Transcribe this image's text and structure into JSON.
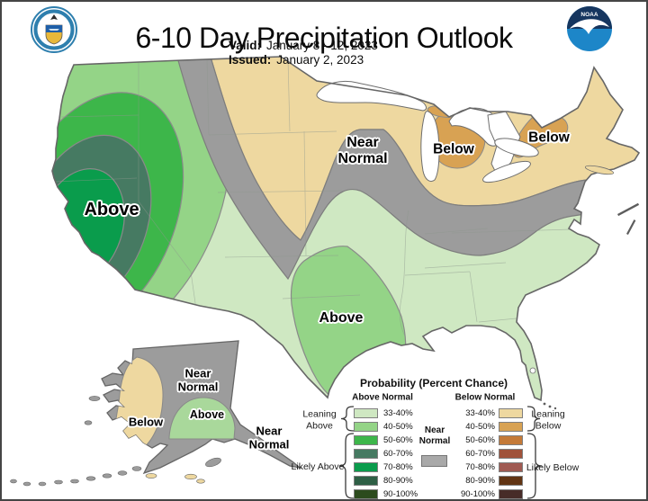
{
  "header": {
    "title": "6-10 Day Precipitation Outlook",
    "valid_label": "Valid:",
    "valid_value": "January 8 - 12, 2023",
    "issued_label": "Issued:",
    "issued_value": "January 2, 2023",
    "left_logo": "department-of-commerce-seal",
    "right_logo": "noaa-logo",
    "noaa_text": "NOAA"
  },
  "map": {
    "labels": {
      "west_above": "Above",
      "central_near_normal": "Near Normal",
      "michigan_below": "Below",
      "newyork_below": "Below",
      "texas_above": "Above",
      "alaska_near_normal": "Near Normal",
      "alaska_below": "Below",
      "alaska_above": "Above",
      "panhandle_near_normal": "Near Normal"
    },
    "colors": {
      "near_normal": "#9c9c9c",
      "alaska_above": "#a9d89b",
      "lake": "#ffffff",
      "outline": "#666666"
    }
  },
  "legend": {
    "title": "Probability (Percent Chance)",
    "above_header": "Above Normal",
    "below_header": "Below Normal",
    "near_normal_label": "Near Normal",
    "near_normal_color": "#a9a9a9",
    "groups": {
      "leaning_above": "Leaning Above",
      "likely_above": "Likely Above",
      "leaning_below": "Leaning Below",
      "likely_below": "Likely Below"
    },
    "above_rows": [
      {
        "range": "33-40%",
        "color": "#cfe8c2"
      },
      {
        "range": "40-50%",
        "color": "#94d487"
      },
      {
        "range": "50-60%",
        "color": "#3db64a"
      },
      {
        "range": "60-70%",
        "color": "#467a62"
      },
      {
        "range": "70-80%",
        "color": "#0a9c4c"
      },
      {
        "range": "80-90%",
        "color": "#2e5f45"
      },
      {
        "range": "90-100%",
        "color": "#2c4b1d"
      }
    ],
    "below_rows": [
      {
        "range": "33-40%",
        "color": "#eed8a0"
      },
      {
        "range": "40-50%",
        "color": "#d8a253"
      },
      {
        "range": "50-60%",
        "color": "#c47a38"
      },
      {
        "range": "60-70%",
        "color": "#a0523a"
      },
      {
        "range": "70-80%",
        "color": "#a05a52"
      },
      {
        "range": "80-90%",
        "color": "#613413"
      },
      {
        "range": "90-100%",
        "color": "#472c28"
      }
    ]
  }
}
